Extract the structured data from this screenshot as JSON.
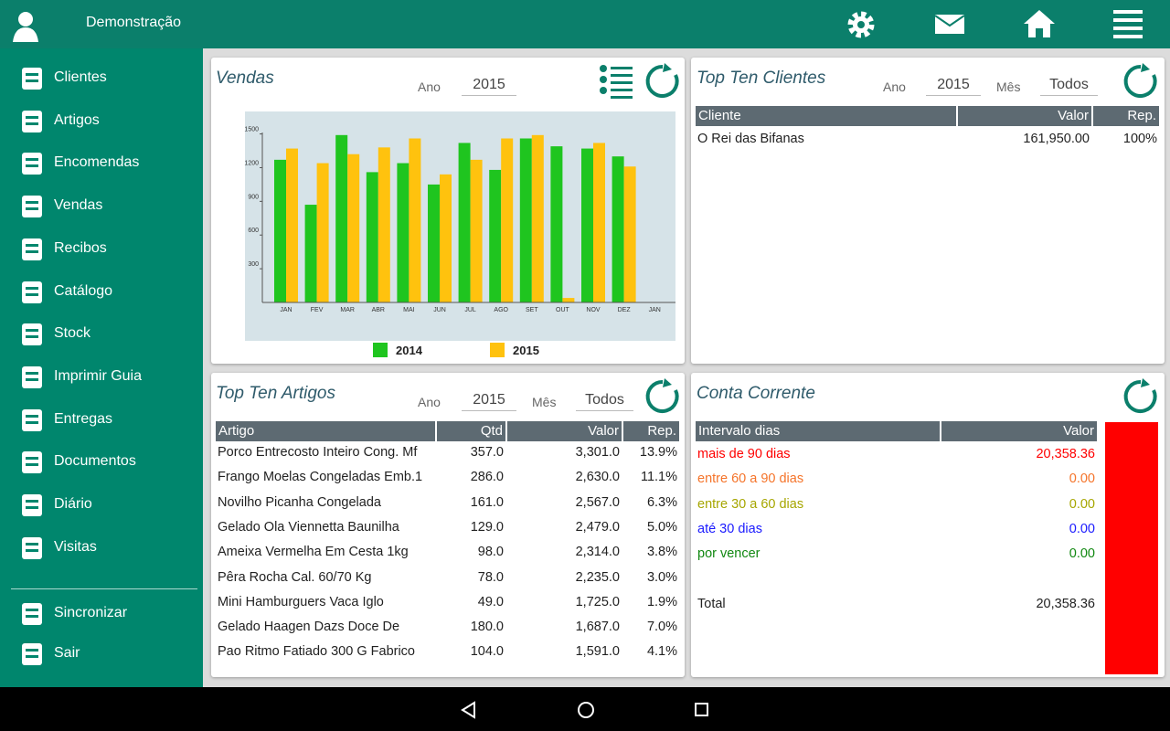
{
  "header": {
    "title": "Demonstração"
  },
  "menu": {
    "items": [
      "Clientes",
      "Artigos",
      "Encomendas",
      "Vendas",
      "Recibos",
      "Catálogo",
      "Stock",
      "Imprimir Guia",
      "Entregas",
      "Documentos",
      "Diário",
      "Visitas"
    ],
    "footer": [
      "Sincronizar",
      "Sair"
    ]
  },
  "vendas": {
    "title": "Vendas",
    "year_label": "Ano",
    "year": "2015",
    "chart_data": {
      "type": "bar",
      "categories": [
        "JAN",
        "FEV",
        "MAR",
        "ABR",
        "MAI",
        "JUN",
        "JUL",
        "AGO",
        "SET",
        "OUT",
        "NOV",
        "DEZ",
        "JAN"
      ],
      "series": [
        {
          "name": "2014",
          "color": "#1fc51f",
          "values": [
            1270,
            870,
            1490,
            1160,
            1240,
            1050,
            1420,
            1180,
            1460,
            1390,
            1370,
            1300,
            null
          ]
        },
        {
          "name": "2015",
          "color": "#ffc20e",
          "values": [
            1370,
            1240,
            1320,
            1380,
            1460,
            1140,
            1270,
            1460,
            1490,
            40,
            1420,
            1210,
            null
          ]
        }
      ],
      "ylim": [
        0,
        1700
      ],
      "yticks": [
        300,
        600,
        900,
        1200,
        1500
      ]
    }
  },
  "top_clientes": {
    "title": "Top Ten Clientes",
    "year_label": "Ano",
    "year": "2015",
    "month_label": "Mês",
    "month": "Todos",
    "table": {
      "columns": [
        "Cliente",
        "Valor",
        "Rep."
      ],
      "rows": [
        [
          "O Rei das Bifanas",
          "161,950.00",
          "100%"
        ]
      ]
    }
  },
  "top_artigos": {
    "title": "Top Ten Artigos",
    "year_label": "Ano",
    "year": "2015",
    "month_label": "Mês",
    "month": "Todos",
    "table": {
      "columns": [
        "Artigo",
        "Qtd",
        "Valor",
        "Rep."
      ],
      "rows": [
        [
          "Porco Entrecosto Inteiro Cong. Mf",
          "357.0",
          "3,301.0",
          "13.9%"
        ],
        [
          "Frango Moelas Congeladas Emb.1",
          "286.0",
          "2,630.0",
          "11.1%"
        ],
        [
          "Novilho Picanha Congelada",
          "161.0",
          "2,567.0",
          "6.3%"
        ],
        [
          "Gelado Ola Viennetta Baunilha",
          "129.0",
          "2,479.0",
          "5.0%"
        ],
        [
          "Ameixa Vermelha Em Cesta 1kg",
          "98.0",
          "2,314.0",
          "3.8%"
        ],
        [
          "Pêra Rocha Cal. 60/70 Kg",
          "78.0",
          "2,235.0",
          "3.0%"
        ],
        [
          "Mini Hamburguers Vaca Iglo",
          "49.0",
          "1,725.0",
          "1.9%"
        ],
        [
          "Gelado Haagen Dazs Doce De",
          "180.0",
          "1,687.0",
          "7.0%"
        ],
        [
          "Pao Ritmo Fatiado 300 G Fabrico",
          "104.0",
          "1,591.0",
          "4.1%"
        ]
      ]
    }
  },
  "conta_corrente": {
    "title": "Conta Corrente",
    "table": {
      "columns": [
        "Intervalo dias",
        "Valor"
      ],
      "rows": [
        [
          "mais de 90 dias",
          "20,358.36"
        ],
        [
          "entre 60 a 90 dias",
          "0.00"
        ],
        [
          "entre 30 a 60 dias",
          "0.00"
        ],
        [
          "até 30 dias",
          "0.00"
        ],
        [
          "por vencer",
          "0.00"
        ]
      ],
      "row_colors": [
        "#ff0000",
        "#f5742a",
        "#a6a600",
        "#1a1aff",
        "#118811"
      ]
    },
    "total": [
      "Total",
      "20,358.36"
    ]
  }
}
